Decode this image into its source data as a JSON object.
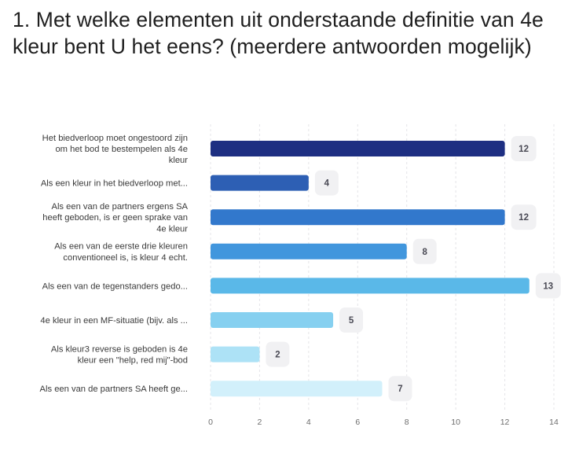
{
  "question": {
    "title": "1. Met welke elementen uit onderstaande definitie van 4e kleur bent U het eens? (meerdere antwoorden mogelijk)"
  },
  "chart_data": {
    "type": "bar",
    "orientation": "horizontal",
    "categories": [
      "Het biedverloop moet ongestoord zijn om het bod te bestempelen als 4e kleur",
      "Als een kleur in het biedverloop met...",
      "Als een van de partners ergens SA heeft geboden, is er geen sprake van 4e kleur",
      "Als een van de eerste drie kleuren conventioneel is, is kleur 4 echt.",
      "Als een van de tegenstanders gedo...",
      "4e kleur in een MF-situatie (bijv. als ...",
      "Als kleur3 reverse is geboden is 4e kleur een \"help, red mij\"-bod",
      "Als een van de partners SA heeft ge..."
    ],
    "category_lines": [
      [
        "Het biedverloop moet ongestoord zijn",
        "om het bod te bestempelen als 4e",
        "kleur"
      ],
      [
        "Als een kleur in het biedverloop met..."
      ],
      [
        "Als een van de partners ergens SA",
        "heeft geboden, is er geen sprake van",
        "4e kleur"
      ],
      [
        "Als een van de eerste drie kleuren",
        "conventioneel is, is kleur 4 echt."
      ],
      [
        "Als een van de tegenstanders gedo..."
      ],
      [
        "4e kleur in een MF-situatie (bijv. als ..."
      ],
      [
        "Als kleur3 reverse is geboden is 4e",
        "kleur een \"help, red mij\"-bod"
      ],
      [
        "Als een van de partners SA heeft ge..."
      ]
    ],
    "values": [
      12,
      4,
      12,
      8,
      13,
      5,
      2,
      7
    ],
    "colors": [
      "#1e2f82",
      "#2d5fb4",
      "#3278cc",
      "#4196dd",
      "#5ab8e8",
      "#86d0f0",
      "#ade2f6",
      "#d2f0fb"
    ],
    "xlim": [
      0,
      14
    ],
    "xticks": [
      0,
      2,
      4,
      6,
      8,
      10,
      12,
      14
    ],
    "grid": true,
    "data_labels": true
  }
}
